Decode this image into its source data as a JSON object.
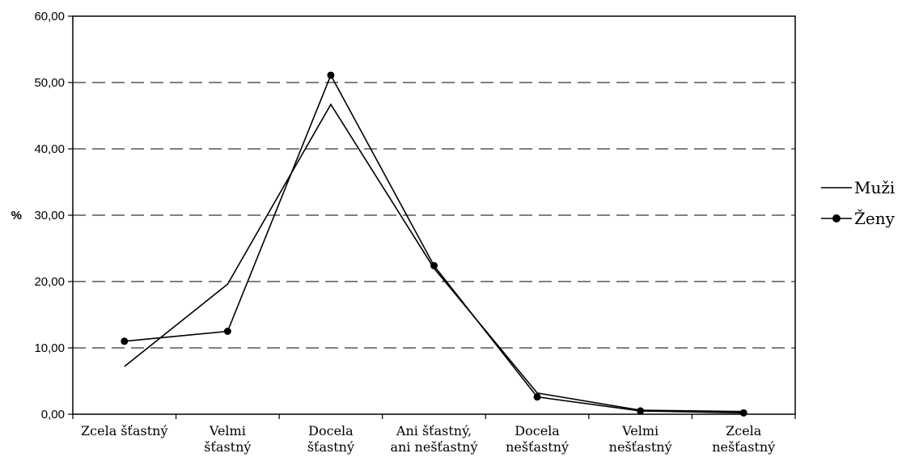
{
  "chart_data": {
    "type": "line",
    "title": "",
    "xlabel": "",
    "ylabel": "%",
    "ylim": [
      0,
      60
    ],
    "yticks": [
      "0,00",
      "10,00",
      "20,00",
      "30,00",
      "40,00",
      "50,00",
      "60,00"
    ],
    "ytick_values": [
      0,
      10,
      20,
      30,
      40,
      50,
      60
    ],
    "grid": "horizontal dashed",
    "legend_position": "right",
    "categories": [
      [
        "Zcela šťastný"
      ],
      [
        "Velmi",
        "šťastný"
      ],
      [
        "Docela",
        "šťastný"
      ],
      [
        "Ani šťastný,",
        "ani nešťastný"
      ],
      [
        "Docela",
        "nešťastný"
      ],
      [
        "Velmi",
        "nešťastný"
      ],
      [
        "Zcela",
        "nešťastný"
      ]
    ],
    "series": [
      {
        "name": "Muži",
        "marker": "none",
        "color": "#000000",
        "values": [
          7.2,
          19.6,
          46.7,
          22.0,
          3.2,
          0.6,
          0.4
        ]
      },
      {
        "name": "Ženy",
        "marker": "circle",
        "color": "#000000",
        "values": [
          11.0,
          12.5,
          51.1,
          22.4,
          2.6,
          0.5,
          0.2
        ]
      }
    ]
  }
}
